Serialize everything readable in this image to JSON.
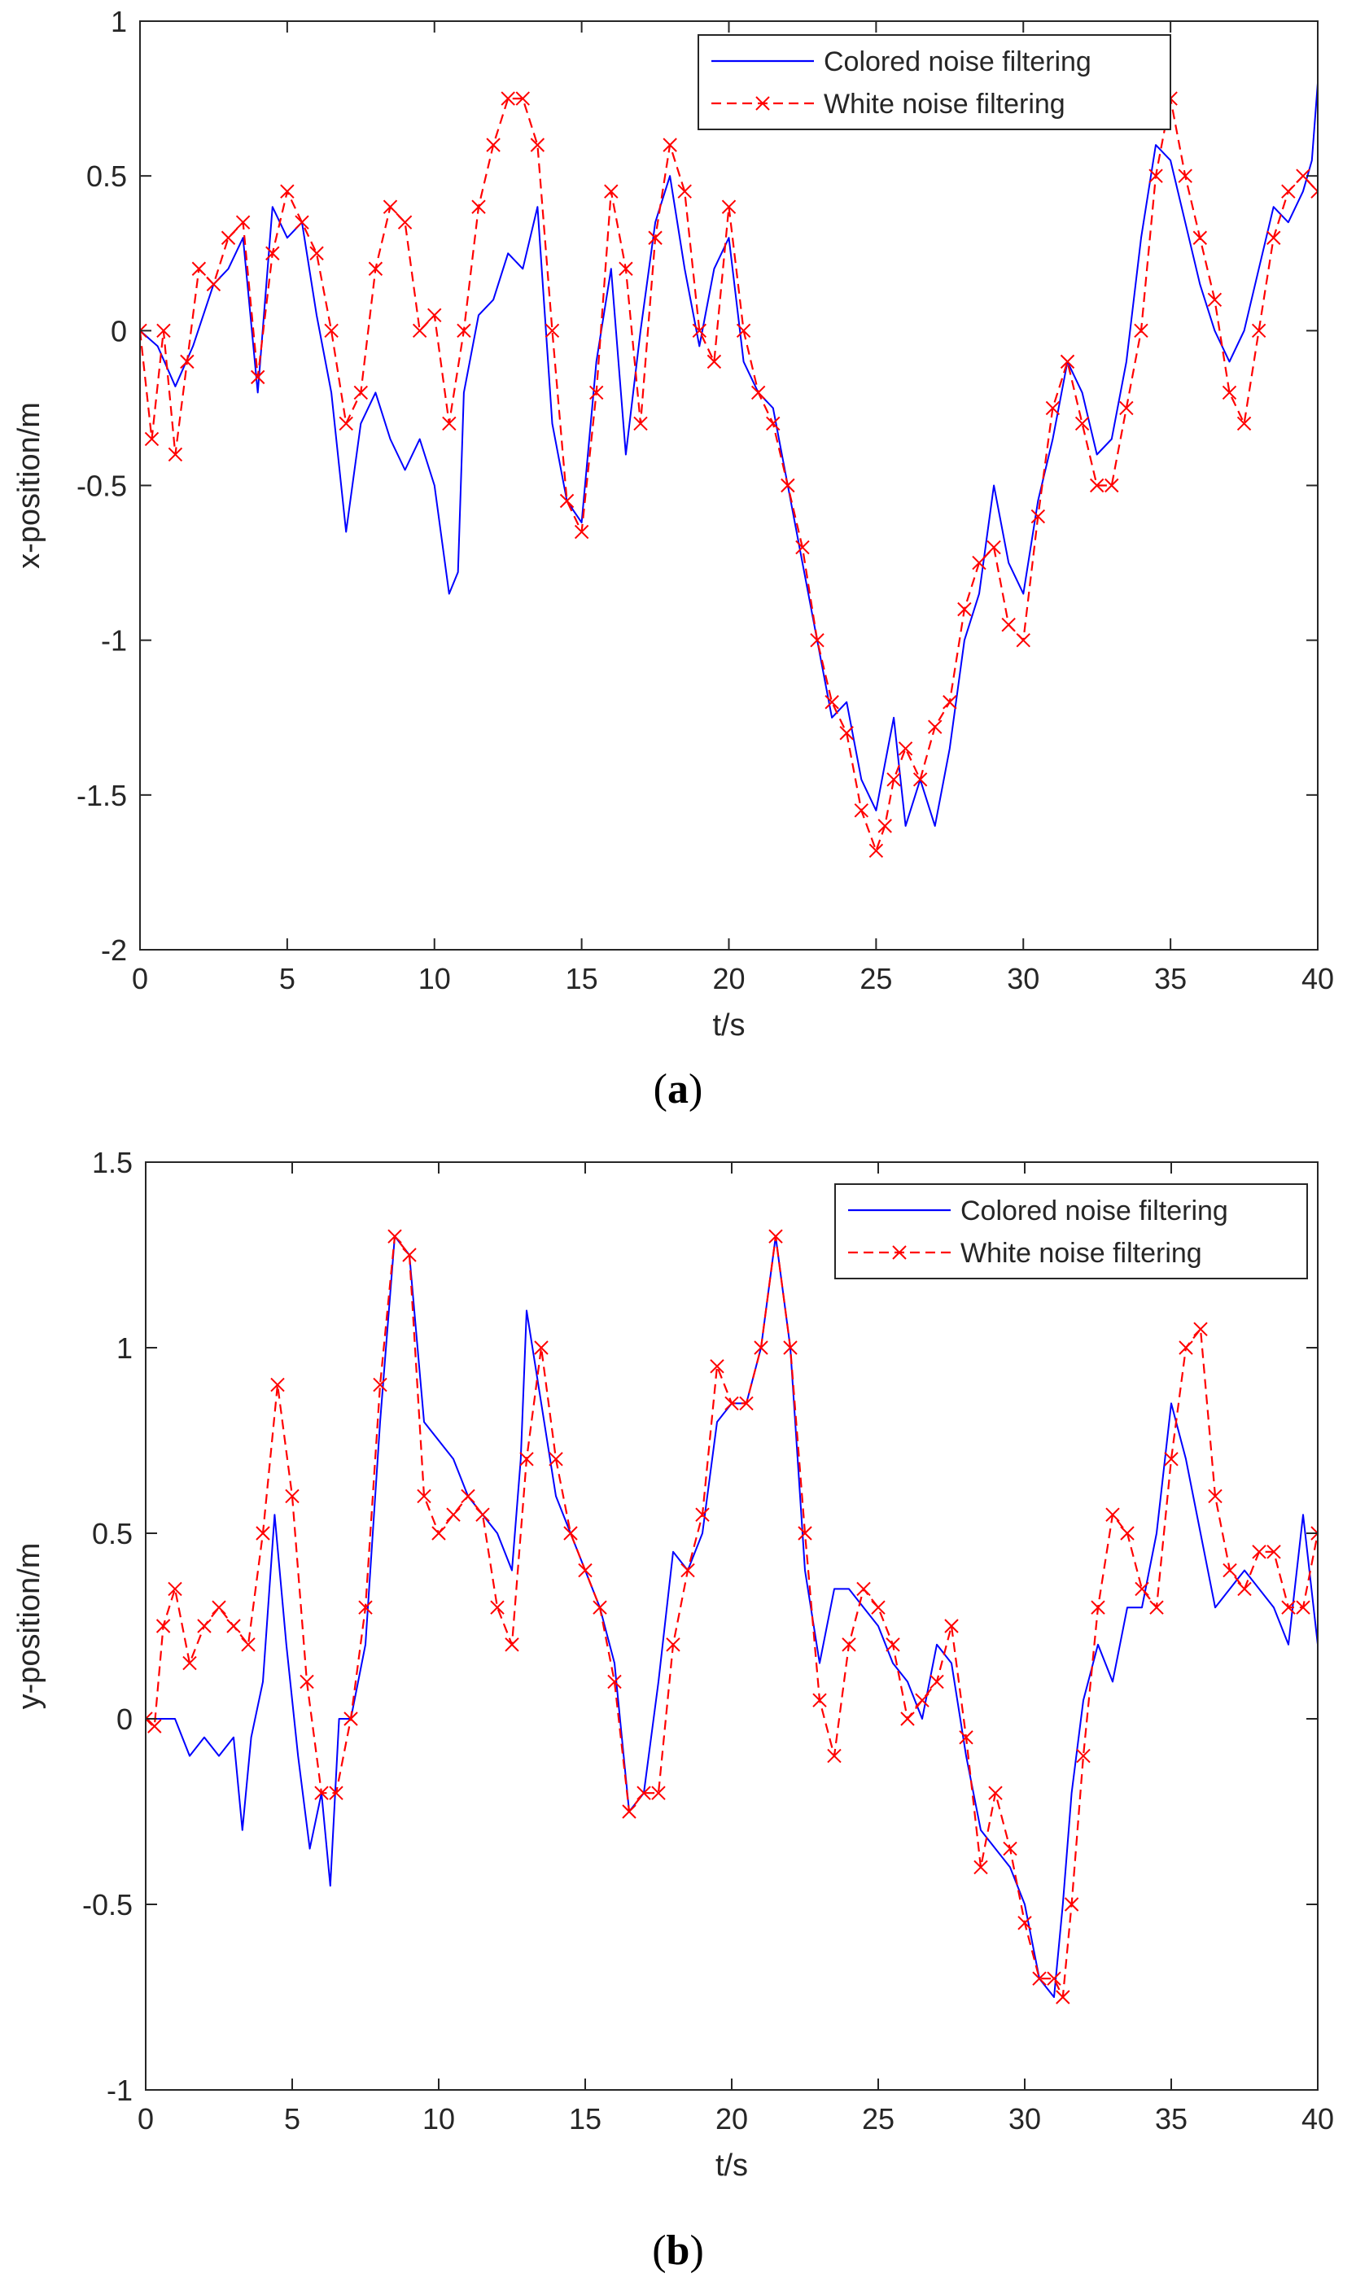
{
  "chart_data": [
    {
      "type": "line",
      "panel_label": "a",
      "xlabel": "t/s",
      "ylabel": "x-position/m",
      "xlim": [
        0,
        40
      ],
      "ylim": [
        -2,
        1
      ],
      "xticks": [
        0,
        5,
        10,
        15,
        20,
        25,
        30,
        35,
        40
      ],
      "yticks": [
        -2,
        -1.5,
        -1,
        -0.5,
        0,
        0.5,
        1
      ],
      "xtick_labels": [
        "0",
        "5",
        "10",
        "15",
        "20",
        "25",
        "30",
        "35",
        "40"
      ],
      "ytick_labels": [
        "-2",
        "-1.5",
        "-1",
        "-0.5",
        "0",
        "0.5",
        "1"
      ],
      "legend_position": "top-right",
      "series": [
        {
          "name": "Colored noise filtering",
          "color": "#0000ff",
          "style": "solid",
          "x": [
            0,
            0.6,
            1.2,
            1.8,
            2.5,
            3.0,
            3.5,
            4.0,
            4.5,
            5.0,
            5.5,
            6.0,
            6.5,
            7.0,
            7.5,
            8.0,
            8.5,
            9.0,
            9.5,
            10.0,
            10.5,
            10.8,
            11.0,
            11.5,
            12.0,
            12.5,
            13.0,
            13.5,
            14.0,
            14.5,
            15.0,
            15.5,
            16.0,
            16.5,
            17.0,
            17.5,
            18.0,
            18.5,
            19.0,
            19.5,
            20.0,
            20.5,
            21.0,
            21.5,
            22.0,
            22.5,
            23.0,
            23.5,
            24.0,
            24.5,
            25.0,
            25.3,
            25.6,
            26.0,
            26.5,
            27.0,
            27.5,
            28.0,
            28.5,
            29.0,
            29.5,
            30.0,
            30.5,
            31.0,
            31.5,
            32.0,
            32.5,
            33.0,
            33.5,
            34.0,
            34.5,
            35.0,
            35.5,
            36.0,
            36.5,
            37.0,
            37.5,
            38.0,
            38.5,
            39.0,
            39.5,
            39.8,
            40.0
          ],
          "y": [
            0.0,
            -0.05,
            -0.18,
            -0.05,
            0.15,
            0.2,
            0.3,
            -0.2,
            0.4,
            0.3,
            0.35,
            0.05,
            -0.2,
            -0.65,
            -0.3,
            -0.2,
            -0.35,
            -0.45,
            -0.35,
            -0.5,
            -0.85,
            -0.78,
            -0.2,
            0.05,
            0.1,
            0.25,
            0.2,
            0.4,
            -0.3,
            -0.55,
            -0.62,
            -0.1,
            0.2,
            -0.4,
            0.0,
            0.35,
            0.5,
            0.2,
            -0.05,
            0.2,
            0.3,
            -0.1,
            -0.2,
            -0.25,
            -0.5,
            -0.75,
            -1.0,
            -1.25,
            -1.2,
            -1.45,
            -1.55,
            -1.4,
            -1.25,
            -1.6,
            -1.45,
            -1.6,
            -1.35,
            -1.0,
            -0.85,
            -0.5,
            -0.75,
            -0.85,
            -0.55,
            -0.35,
            -0.1,
            -0.2,
            -0.4,
            -0.35,
            -0.1,
            0.3,
            0.6,
            0.55,
            0.35,
            0.15,
            0.0,
            -0.1,
            0.0,
            0.2,
            0.4,
            0.35,
            0.45,
            0.55,
            0.8
          ]
        },
        {
          "name": "White noise filtering",
          "color": "#ff0000",
          "style": "dashed-x",
          "x": [
            0,
            0.4,
            0.8,
            1.2,
            1.6,
            2.0,
            2.5,
            3.0,
            3.5,
            4.0,
            4.5,
            5.0,
            5.5,
            6.0,
            6.5,
            7.0,
            7.5,
            8.0,
            8.5,
            9.0,
            9.5,
            10.0,
            10.5,
            11.0,
            11.5,
            12.0,
            12.5,
            13.0,
            13.5,
            14.0,
            14.5,
            15.0,
            15.5,
            16.0,
            16.5,
            17.0,
            17.5,
            18.0,
            18.5,
            19.0,
            19.5,
            20.0,
            20.5,
            21.0,
            21.5,
            22.0,
            22.5,
            23.0,
            23.5,
            24.0,
            24.5,
            25.0,
            25.3,
            25.6,
            26.0,
            26.5,
            27.0,
            27.5,
            28.0,
            28.5,
            29.0,
            29.5,
            30.0,
            30.5,
            31.0,
            31.5,
            32.0,
            32.5,
            33.0,
            33.5,
            34.0,
            34.5,
            35.0,
            35.5,
            36.0,
            36.5,
            37.0,
            37.5,
            38.0,
            38.5,
            39.0,
            39.5,
            40.0
          ],
          "y": [
            0.0,
            -0.35,
            0.0,
            -0.4,
            -0.1,
            0.2,
            0.15,
            0.3,
            0.35,
            -0.15,
            0.25,
            0.45,
            0.35,
            0.25,
            0.0,
            -0.3,
            -0.2,
            0.2,
            0.4,
            0.35,
            0.0,
            0.05,
            -0.3,
            0.0,
            0.4,
            0.6,
            0.75,
            0.75,
            0.6,
            0.0,
            -0.55,
            -0.65,
            -0.2,
            0.45,
            0.2,
            -0.3,
            0.3,
            0.6,
            0.45,
            0.0,
            -0.1,
            0.4,
            0.0,
            -0.2,
            -0.3,
            -0.5,
            -0.7,
            -1.0,
            -1.2,
            -1.3,
            -1.55,
            -1.68,
            -1.6,
            -1.45,
            -1.35,
            -1.45,
            -1.28,
            -1.2,
            -0.9,
            -0.75,
            -0.7,
            -0.95,
            -1.0,
            -0.6,
            -0.25,
            -0.1,
            -0.3,
            -0.5,
            -0.5,
            -0.25,
            0.0,
            0.5,
            0.75,
            0.5,
            0.3,
            0.1,
            -0.2,
            -0.3,
            0.0,
            0.3,
            0.45,
            0.5,
            0.45
          ]
        }
      ]
    },
    {
      "type": "line",
      "panel_label": "b",
      "xlabel": "t/s",
      "ylabel": "y-position/m",
      "xlim": [
        0,
        40
      ],
      "ylim": [
        -1,
        1.5
      ],
      "xticks": [
        0,
        5,
        10,
        15,
        20,
        25,
        30,
        35,
        40
      ],
      "yticks": [
        -1,
        -0.5,
        0,
        0.5,
        1,
        1.5
      ],
      "xtick_labels": [
        "0",
        "5",
        "10",
        "15",
        "20",
        "25",
        "30",
        "35",
        "40"
      ],
      "ytick_labels": [
        "-1",
        "-0.5",
        "0",
        "0.5",
        "1",
        "1.5"
      ],
      "legend_position": "top-right",
      "series": [
        {
          "name": "Colored noise filtering",
          "color": "#0000ff",
          "style": "solid",
          "x": [
            0,
            0.5,
            1.0,
            1.5,
            2.0,
            2.5,
            3.0,
            3.3,
            3.6,
            4.0,
            4.4,
            4.8,
            5.2,
            5.6,
            6.0,
            6.3,
            6.6,
            7.0,
            7.5,
            8.0,
            8.5,
            9.0,
            9.5,
            10.0,
            10.5,
            11.0,
            11.5,
            12.0,
            12.5,
            12.8,
            13.0,
            13.5,
            14.0,
            14.5,
            15.0,
            15.5,
            16.0,
            16.5,
            17.0,
            17.5,
            18.0,
            18.5,
            19.0,
            19.5,
            20.0,
            20.5,
            21.0,
            21.5,
            22.0,
            22.5,
            23.0,
            23.5,
            24.0,
            24.5,
            25.0,
            25.5,
            26.0,
            26.5,
            27.0,
            27.5,
            28.0,
            28.5,
            29.0,
            29.5,
            30.0,
            30.5,
            31.0,
            31.3,
            31.6,
            32.0,
            32.5,
            33.0,
            33.5,
            34.0,
            34.5,
            35.0,
            35.5,
            36.0,
            36.5,
            37.0,
            37.5,
            38.0,
            38.5,
            39.0,
            39.5,
            40.0
          ],
          "y": [
            0.0,
            0.0,
            0.0,
            -0.1,
            -0.05,
            -0.1,
            -0.05,
            -0.3,
            -0.05,
            0.1,
            0.55,
            0.2,
            -0.1,
            -0.35,
            -0.2,
            -0.45,
            0.0,
            0.0,
            0.2,
            0.8,
            1.3,
            1.25,
            0.8,
            0.75,
            0.7,
            0.6,
            0.55,
            0.5,
            0.4,
            0.7,
            1.1,
            0.85,
            0.6,
            0.5,
            0.4,
            0.3,
            0.15,
            -0.25,
            -0.2,
            0.1,
            0.45,
            0.4,
            0.5,
            0.8,
            0.85,
            0.85,
            1.0,
            1.3,
            1.0,
            0.4,
            0.15,
            0.35,
            0.35,
            0.3,
            0.25,
            0.15,
            0.1,
            0.0,
            0.2,
            0.15,
            -0.1,
            -0.3,
            -0.35,
            -0.4,
            -0.5,
            -0.7,
            -0.75,
            -0.5,
            -0.2,
            0.05,
            0.2,
            0.1,
            0.3,
            0.3,
            0.5,
            0.85,
            0.7,
            0.5,
            0.3,
            0.35,
            0.4,
            0.35,
            0.3,
            0.2,
            0.55,
            0.2
          ]
        },
        {
          "name": "White noise filtering",
          "color": "#ff0000",
          "style": "dashed-x",
          "x": [
            0,
            0.3,
            0.6,
            1.0,
            1.5,
            2.0,
            2.5,
            3.0,
            3.5,
            4.0,
            4.5,
            5.0,
            5.5,
            6.0,
            6.5,
            7.0,
            7.5,
            8.0,
            8.5,
            9.0,
            9.5,
            10.0,
            10.5,
            11.0,
            11.5,
            12.0,
            12.5,
            13.0,
            13.5,
            14.0,
            14.5,
            15.0,
            15.5,
            16.0,
            16.5,
            17.0,
            17.5,
            18.0,
            18.5,
            19.0,
            19.5,
            20.0,
            20.5,
            21.0,
            21.5,
            22.0,
            22.5,
            23.0,
            23.5,
            24.0,
            24.5,
            25.0,
            25.5,
            26.0,
            26.5,
            27.0,
            27.5,
            28.0,
            28.5,
            29.0,
            29.5,
            30.0,
            30.5,
            31.0,
            31.3,
            31.6,
            32.0,
            32.5,
            33.0,
            33.5,
            34.0,
            34.5,
            35.0,
            35.5,
            36.0,
            36.5,
            37.0,
            37.5,
            38.0,
            38.5,
            39.0,
            39.5,
            40.0
          ],
          "y": [
            0.0,
            -0.02,
            0.25,
            0.35,
            0.15,
            0.25,
            0.3,
            0.25,
            0.2,
            0.5,
            0.9,
            0.6,
            0.1,
            -0.2,
            -0.2,
            0.0,
            0.3,
            0.9,
            1.3,
            1.25,
            0.6,
            0.5,
            0.55,
            0.6,
            0.55,
            0.3,
            0.2,
            0.7,
            1.0,
            0.7,
            0.5,
            0.4,
            0.3,
            0.1,
            -0.25,
            -0.2,
            -0.2,
            0.2,
            0.4,
            0.55,
            0.95,
            0.85,
            0.85,
            1.0,
            1.3,
            1.0,
            0.5,
            0.05,
            -0.1,
            0.2,
            0.35,
            0.3,
            0.2,
            0.0,
            0.05,
            0.1,
            0.25,
            -0.05,
            -0.4,
            -0.2,
            -0.35,
            -0.55,
            -0.7,
            -0.7,
            -0.75,
            -0.5,
            -0.1,
            0.3,
            0.55,
            0.5,
            0.35,
            0.3,
            0.7,
            1.0,
            1.05,
            0.6,
            0.4,
            0.35,
            0.45,
            0.45,
            0.3,
            0.3,
            0.5
          ]
        }
      ]
    }
  ]
}
